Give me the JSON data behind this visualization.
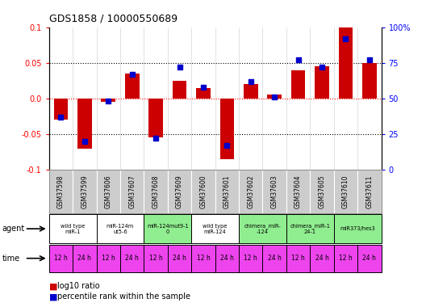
{
  "title": "GDS1858 / 10000550689",
  "samples": [
    "GSM37598",
    "GSM37599",
    "GSM37606",
    "GSM37607",
    "GSM37608",
    "GSM37609",
    "GSM37600",
    "GSM37601",
    "GSM37602",
    "GSM37603",
    "GSM37604",
    "GSM37605",
    "GSM37610",
    "GSM37611"
  ],
  "log10_ratio": [
    -0.03,
    -0.07,
    -0.005,
    0.035,
    -0.055,
    0.025,
    0.015,
    -0.085,
    0.02,
    0.005,
    0.04,
    0.045,
    0.1,
    0.05
  ],
  "percentile_rank": [
    37,
    20,
    48,
    67,
    22,
    72,
    58,
    17,
    62,
    51,
    77,
    72,
    92,
    77
  ],
  "agents": [
    {
      "label": "wild type\nmiR-1",
      "cols": [
        0,
        1
      ],
      "color": "#ffffff"
    },
    {
      "label": "miR-124m\nut5-6",
      "cols": [
        2,
        3
      ],
      "color": "#ffffff"
    },
    {
      "label": "miR-124mut9-1\n0",
      "cols": [
        4,
        5
      ],
      "color": "#90ee90"
    },
    {
      "label": "wild type\nmiR-124",
      "cols": [
        6,
        7
      ],
      "color": "#ffffff"
    },
    {
      "label": "chimera_miR-\n-124",
      "cols": [
        8,
        9
      ],
      "color": "#90ee90"
    },
    {
      "label": "chimera_miR-1\n24-1",
      "cols": [
        10,
        11
      ],
      "color": "#90ee90"
    },
    {
      "label": "miR373/hes3",
      "cols": [
        12,
        13
      ],
      "color": "#90ee90"
    }
  ],
  "time_labels": [
    "12 h",
    "24 h",
    "12 h",
    "24 h",
    "12 h",
    "24 h",
    "12 h",
    "24 h",
    "12 h",
    "24 h",
    "12 h",
    "24 h",
    "12 h",
    "24 h"
  ],
  "time_color": "#ee44ee",
  "bar_color": "#cc0000",
  "dot_color": "#0000cc",
  "ylim_left": [
    -0.1,
    0.1
  ],
  "ylim_right": [
    0,
    100
  ],
  "yticks_left": [
    -0.1,
    -0.05,
    0.0,
    0.05,
    0.1
  ],
  "yticks_right": [
    0,
    25,
    50,
    75,
    100
  ],
  "ytick_labels_right": [
    "0",
    "25",
    "50",
    "75",
    "100%"
  ],
  "dotted_lines": [
    -0.05,
    0.0,
    0.05
  ],
  "sample_bg_color": "#cccccc",
  "border_color": "#888888"
}
